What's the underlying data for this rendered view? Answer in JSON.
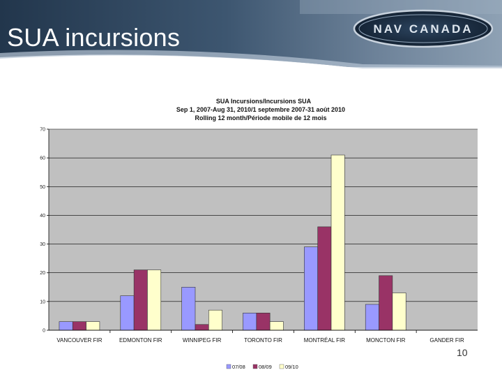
{
  "slide": {
    "title": "SUA incursions",
    "logo_text": "NAV CANADA",
    "page_number": "10"
  },
  "colors": {
    "header_dark": "#2b3f55",
    "header_mid": "#7f95ad",
    "plot_bg": "#c0c0c0",
    "bar_border": "#333333"
  },
  "chart_data": {
    "type": "bar",
    "title": [
      "SUA Incursions/Incursions SUA",
      "Sep 1, 2007-Aug 31, 2010/1 septembre 2007-31 août 2010",
      "Rolling 12 month/Période mobile de 12 mois"
    ],
    "xlabel": "",
    "ylabel": "",
    "ylim": [
      0,
      70
    ],
    "yticks": [
      0,
      10,
      20,
      30,
      40,
      50,
      60,
      70
    ],
    "grid": true,
    "legend_position": "bottom",
    "categories": [
      "VANCOUVER FIR",
      "EDMONTON FIR",
      "WINNIPEG FIR",
      "TORONTO FIR",
      "MONTRÉAL FIR",
      "MONCTON FIR",
      "GANDER FIR"
    ],
    "series": [
      {
        "name": "07/08",
        "color": "#9999ff",
        "values": [
          3,
          12,
          15,
          6,
          29,
          9,
          0
        ]
      },
      {
        "name": "08/09",
        "color": "#993366",
        "values": [
          3,
          21,
          2,
          6,
          36,
          19,
          0
        ]
      },
      {
        "name": "09/10",
        "color": "#ffffcc",
        "values": [
          3,
          21,
          7,
          3,
          61,
          13,
          0
        ]
      }
    ]
  }
}
